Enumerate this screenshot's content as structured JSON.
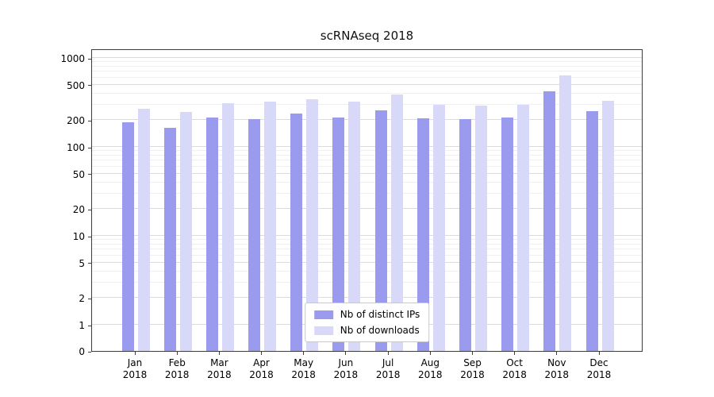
{
  "title": "scRNAseq 2018",
  "chart_data": {
    "type": "bar",
    "title": "scRNAseq 2018",
    "yscale": "symlog",
    "ylim": [
      0,
      1100
    ],
    "yticks": [
      0,
      1,
      2,
      5,
      10,
      20,
      50,
      100,
      200,
      500,
      1000
    ],
    "grid": "horizontal-log-minor",
    "legend_position": "lower center",
    "categories": [
      "Jan",
      "Feb",
      "Mar",
      "Apr",
      "May",
      "Jun",
      "Jul",
      "Aug",
      "Sep",
      "Oct",
      "Nov",
      "Dec"
    ],
    "year_label": "2018",
    "series": [
      {
        "name": "Nb of distinct IPs",
        "color": "#9a9aef",
        "values": [
          190,
          165,
          215,
          205,
          235,
          215,
          260,
          210,
          205,
          215,
          420,
          250
        ]
      },
      {
        "name": "Nb of downloads",
        "color": "#d8d8f8",
        "values": [
          270,
          245,
          310,
          320,
          345,
          320,
          390,
          300,
          290,
          300,
          640,
          330
        ]
      }
    ]
  }
}
